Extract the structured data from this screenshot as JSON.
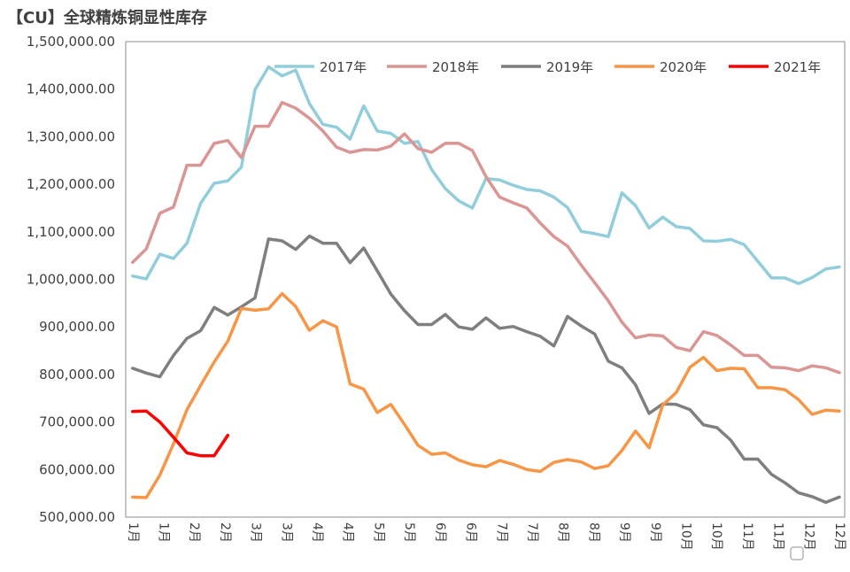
{
  "chart_data": {
    "type": "line",
    "title": "【CU】全球精炼铜显性库存",
    "xlabel": "",
    "ylabel": "",
    "ylim": [
      500000,
      1500000
    ],
    "y_ticks": [
      "1,500,000.00",
      "1,400,000.00",
      "1,300,000.00",
      "1,200,000.00",
      "1,100,000.00",
      "1,000,000.00",
      "900,000.00",
      "800,000.00",
      "700,000.00",
      "600,000.00",
      "500,000.00"
    ],
    "x_tick_labels": [
      "1月",
      "1月",
      "2月",
      "2月",
      "3月",
      "3月",
      "4月",
      "4月",
      "5月",
      "5月",
      "6月",
      "6月",
      "7月",
      "7月",
      "8月",
      "8月",
      "9月",
      "9月",
      "10月",
      "10月",
      "11月",
      "11月",
      "12月",
      "12月"
    ],
    "grid": false,
    "legend_position": "top",
    "series": [
      {
        "name": "2017年",
        "color": "#92CDDC",
        "values": [
          1007000,
          1001000,
          1053000,
          1044000,
          1076000,
          1160000,
          1202000,
          1207000,
          1236000,
          1399000,
          1447000,
          1428000,
          1440000,
          1370000,
          1326000,
          1320000,
          1295000,
          1365000,
          1312000,
          1307000,
          1286000,
          1290000,
          1231000,
          1191000,
          1165000,
          1150000,
          1212000,
          1209000,
          1198000,
          1189000,
          1186000,
          1173000,
          1151000,
          1101000,
          1096000,
          1090000,
          1182000,
          1155000,
          1108000,
          1131000,
          1111000,
          1107000,
          1081000,
          1080000,
          1084000,
          1073000,
          1038000,
          1003000,
          1003000,
          991000,
          1004000,
          1022000,
          1026000
        ]
      },
      {
        "name": "2018年",
        "color": "#DA9694",
        "values": [
          1036000,
          1064000,
          1139000,
          1152000,
          1240000,
          1240000,
          1286000,
          1292000,
          1256000,
          1322000,
          1322000,
          1372000,
          1360000,
          1339000,
          1312000,
          1278000,
          1267000,
          1273000,
          1272000,
          1280000,
          1306000,
          1275000,
          1267000,
          1286000,
          1286000,
          1271000,
          1216000,
          1173000,
          1161000,
          1150000,
          1118000,
          1090000,
          1070000,
          1030000,
          993000,
          955000,
          910000,
          877000,
          883000,
          881000,
          857000,
          850000,
          890000,
          882000,
          862000,
          840000,
          840000,
          815000,
          814000,
          808000,
          818000,
          814000,
          804000
        ]
      },
      {
        "name": "2019年",
        "color": "#7F7F7F",
        "values": [
          813000,
          803000,
          795000,
          840000,
          876000,
          892000,
          941000,
          925000,
          942000,
          961000,
          1085000,
          1081000,
          1063000,
          1091000,
          1076000,
          1076000,
          1035000,
          1066000,
          1018000,
          969000,
          934000,
          905000,
          905000,
          926000,
          900000,
          895000,
          919000,
          897000,
          901000,
          890000,
          880000,
          860000,
          922000,
          902000,
          885000,
          828000,
          814000,
          778000,
          718000,
          738000,
          737000,
          726000,
          694000,
          688000,
          662000,
          622000,
          622000,
          590000,
          572000,
          551000,
          543000,
          531000,
          542000
        ]
      },
      {
        "name": "2020年",
        "color": "#F79646",
        "values": [
          542000,
          541000,
          588000,
          654000,
          726000,
          777000,
          826000,
          870000,
          939000,
          935000,
          938000,
          970000,
          943000,
          893000,
          913000,
          900000,
          780000,
          769000,
          720000,
          737000,
          695000,
          651000,
          632000,
          635000,
          620000,
          610000,
          606000,
          619000,
          611000,
          600000,
          596000,
          615000,
          621000,
          616000,
          602000,
          608000,
          640000,
          681000,
          646000,
          736000,
          762000,
          815000,
          836000,
          808000,
          813000,
          812000,
          772000,
          772000,
          768000,
          747000,
          716000,
          725000,
          723000
        ]
      },
      {
        "name": "2021年",
        "color": "#FF0000",
        "values": [
          722000,
          723000,
          700000,
          668000,
          635000,
          629000,
          629000,
          672000
        ]
      }
    ]
  }
}
